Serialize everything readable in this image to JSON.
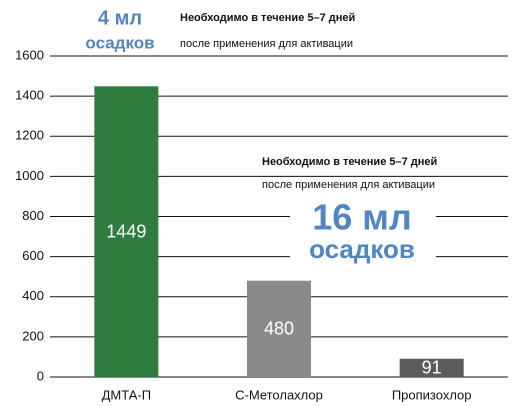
{
  "chart_data": {
    "type": "bar",
    "categories": [
      "ДМТА-П",
      "С-Метолахлор",
      "Пропизохлор"
    ],
    "values": [
      1449,
      480,
      91
    ],
    "colors": [
      "#2e7d3f",
      "#8a8a8a",
      "#5b5b5b"
    ],
    "ylim": [
      0,
      1600
    ],
    "yticks": [
      0,
      200,
      400,
      600,
      800,
      1000,
      1200,
      1400,
      1600
    ],
    "grid": true,
    "annotations": [
      {
        "amount": "4 мл",
        "unit": "осадков",
        "note_bold": "Необходимо в течение 5–7 дней",
        "note": "после применения для активации"
      },
      {
        "amount": "16 мл",
        "unit": "осадков",
        "note_bold": "Необходимо в течение 5–7 дней",
        "note": "после применения для активации"
      }
    ]
  }
}
